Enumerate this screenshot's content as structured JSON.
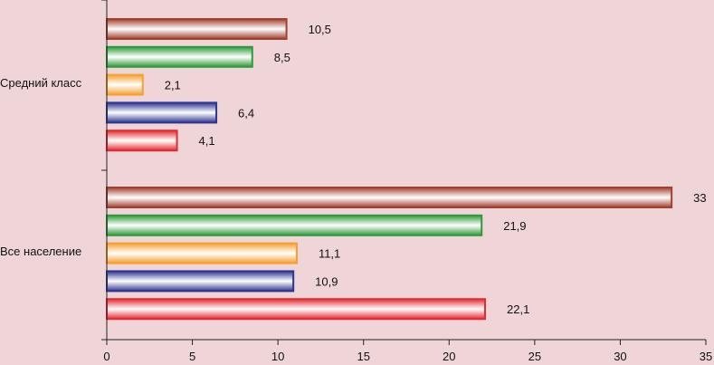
{
  "chart_data": {
    "type": "bar",
    "orientation": "horizontal",
    "categories": [
      "Средний класс",
      "Все население"
    ],
    "xlim": [
      0,
      35
    ],
    "xticks": [
      "0",
      "5",
      "10",
      "15",
      "20",
      "25",
      "30",
      "35"
    ],
    "grid": false,
    "legend": "none",
    "series": [
      {
        "values": [
          10.5,
          33
        ],
        "labels": [
          "10,5",
          "33"
        ],
        "color": "#a0402e"
      },
      {
        "values": [
          8.5,
          21.9
        ],
        "labels": [
          "8,5",
          "21,9"
        ],
        "color": "#2e9a3a"
      },
      {
        "values": [
          2.1,
          11.1
        ],
        "labels": [
          "2,1",
          "11,1"
        ],
        "color": "#f5a030"
      },
      {
        "values": [
          6.4,
          10.9
        ],
        "labels": [
          "6,4",
          "10,9"
        ],
        "color": "#2e3591"
      },
      {
        "values": [
          4.1,
          22.1
        ],
        "labels": [
          "4,1",
          "22,1"
        ],
        "color": "#e52b30"
      }
    ]
  }
}
